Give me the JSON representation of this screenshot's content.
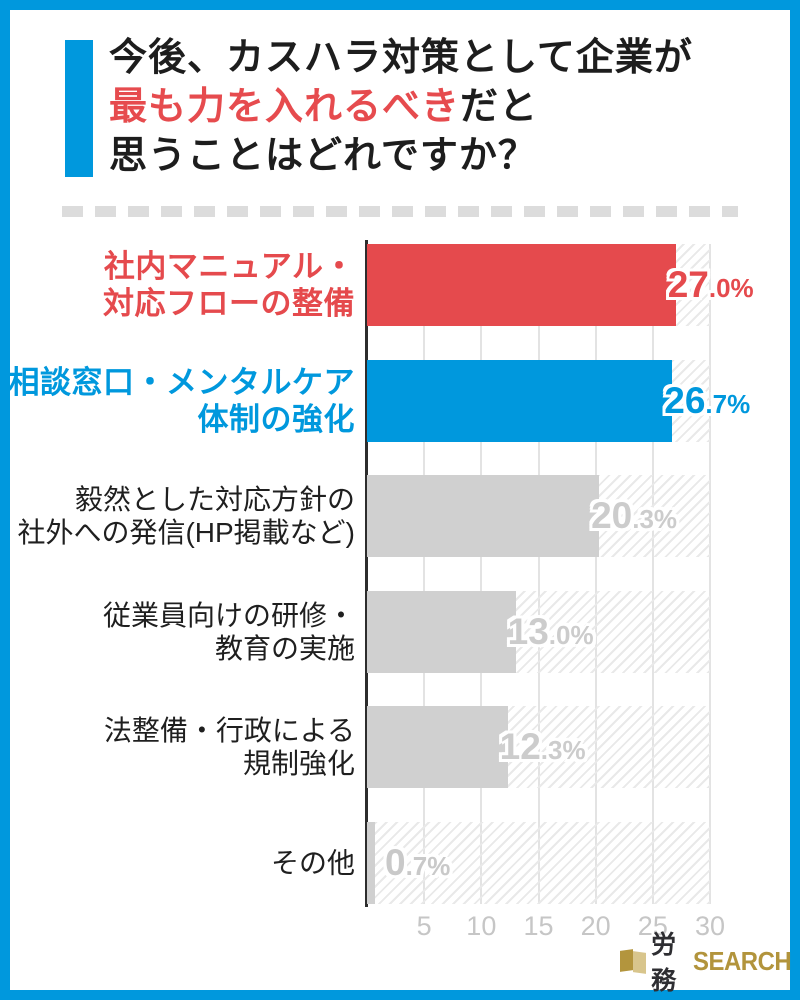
{
  "frame": {
    "border_color": "#0098dd"
  },
  "title": {
    "line1": "今後、カスハラ対策として企業が",
    "line2_highlight": "最も力を入れるべき",
    "line2_rest": "だと",
    "line3": "思うことはどれですか？",
    "highlight_color": "#e64b4e"
  },
  "chart_data": {
    "type": "bar",
    "orientation": "horizontal",
    "categories": [
      [
        "社内マニュアル・",
        "対応フローの整備"
      ],
      [
        "相談窓口・メンタルケア",
        "体制の強化"
      ],
      [
        "毅然とした対応方針の",
        "社外への発信(HP掲載など)"
      ],
      [
        "従業員向けの研修・",
        "教育の実施"
      ],
      [
        "法整備・行政による",
        "規制強化"
      ],
      [
        "その他"
      ]
    ],
    "values": [
      27.0,
      26.7,
      20.3,
      13.0,
      12.3,
      0.7
    ],
    "value_labels": [
      "27.0%",
      "26.7%",
      "20.3%",
      "13.0%",
      "12.3%",
      "0.7%"
    ],
    "bar_colors": [
      "#e54a4d",
      "#0098dd",
      "#d0d0d0",
      "#d0d0d0",
      "#d0d0d0",
      "#d0d0d0"
    ],
    "value_label_colors": [
      "#e54a4d",
      "#0098dd",
      "#cccccc",
      "#cccccc",
      "#cccccc",
      "#c9c9c9"
    ],
    "category_colors": [
      "#e54a4d",
      "#0098dd",
      "#1f1f1f",
      "#1f1f1f",
      "#1f1f1f",
      "#1f1f1f"
    ],
    "xlim": [
      0,
      30
    ],
    "x_ticks": [
      "5",
      "10",
      "15",
      "20",
      "25",
      "30"
    ],
    "grid": true,
    "legend": "none",
    "hatched_background": true
  },
  "footer": {
    "logo_text_dark": "労務",
    "logo_text_gold": "SEARCH",
    "gold_color": "#b2943c"
  }
}
